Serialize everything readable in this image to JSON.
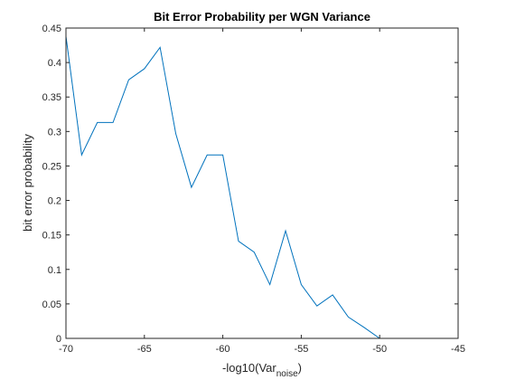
{
  "chart_data": {
    "type": "line",
    "title": "Bit Error Probability per WGN Variance",
    "xlabel_main": "-log10(Var",
    "xlabel_sub": "noise",
    "xlabel_close": ")",
    "ylabel": "bit error probability",
    "xlim": [
      -70,
      -45
    ],
    "ylim": [
      0,
      0.45
    ],
    "xticks": [
      -70,
      -65,
      -60,
      -55,
      -50,
      -45
    ],
    "yticks": [
      0,
      0.05,
      0.1,
      0.15,
      0.2,
      0.25,
      0.3,
      0.35,
      0.4,
      0.45
    ],
    "xtick_labels": [
      "-70",
      "-65",
      "-60",
      "-55",
      "-50",
      "-45"
    ],
    "ytick_labels": [
      "0",
      "0.05",
      "0.1",
      "0.15",
      "0.2",
      "0.25",
      "0.3",
      "0.35",
      "0.4",
      "0.45"
    ],
    "grid": false,
    "line_color": "#0072BD",
    "x": [
      -70,
      -69,
      -68,
      -67,
      -66,
      -65,
      -64,
      -63,
      -62,
      -61,
      -60,
      -59,
      -58,
      -57,
      -56,
      -55,
      -54,
      -53,
      -52,
      -51,
      -50,
      -49
    ],
    "y": [
      0.438,
      0.266,
      0.313,
      0.313,
      0.375,
      0.391,
      0.422,
      0.297,
      0.219,
      0.266,
      0.266,
      0.141,
      0.125,
      0.078,
      0.156,
      0.078,
      0.047,
      0.063,
      0.031,
      0.016,
      0.0,
      0.0
    ]
  }
}
